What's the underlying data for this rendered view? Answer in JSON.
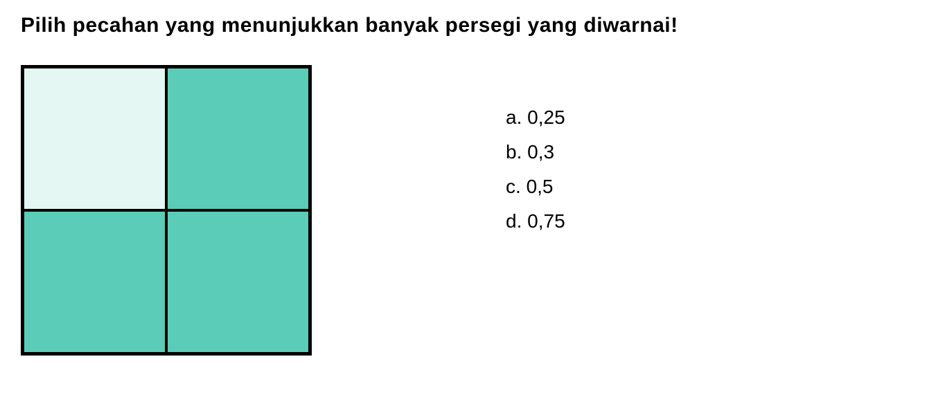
{
  "question": {
    "title": "Pilih pecahan yang menunjukkan banyak persegi yang diwarnai!"
  },
  "grid": {
    "type": "grid",
    "rows": 2,
    "cols": 2,
    "border_color": "#000000",
    "border_width": 3,
    "cells": [
      {
        "filled": false,
        "color": "#e4f7f2"
      },
      {
        "filled": true,
        "color": "#5bccb7"
      },
      {
        "filled": true,
        "color": "#5bccb7"
      },
      {
        "filled": true,
        "color": "#5bccb7"
      }
    ],
    "unfilled_color": "#e4f7f2",
    "filled_color": "#5bccb7"
  },
  "options": [
    {
      "label": "a.",
      "value": "0,25"
    },
    {
      "label": "b.",
      "value": "0,3"
    },
    {
      "label": "c.",
      "value": "0,5"
    },
    {
      "label": "d.",
      "value": "0,75"
    }
  ],
  "styling": {
    "title_fontsize": 30,
    "option_fontsize": 28,
    "background_color": "#ffffff",
    "text_color": "#000000"
  }
}
